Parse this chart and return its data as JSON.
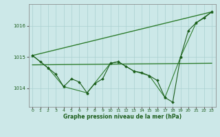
{
  "title": "Graphe pression niveau de la mer (hPa)",
  "background_color": "#cce8e8",
  "grid_color": "#aad0d0",
  "dark_green": "#1a5c1a",
  "mid_green": "#2e7d2e",
  "xlim": [
    -0.5,
    23.5
  ],
  "ylim": [
    1013.4,
    1016.7
  ],
  "yticks": [
    1014,
    1015,
    1016
  ],
  "xticks": [
    0,
    1,
    2,
    3,
    4,
    5,
    6,
    7,
    8,
    9,
    10,
    11,
    12,
    13,
    14,
    15,
    16,
    17,
    18,
    19,
    20,
    21,
    22,
    23
  ],
  "series_diagonal": {
    "x": [
      0,
      23
    ],
    "y": [
      1015.05,
      1016.45
    ],
    "color": "#2e7d2e",
    "linewidth": 1.0
  },
  "series_flat": {
    "x": [
      0,
      23
    ],
    "y": [
      1014.75,
      1014.8
    ],
    "color": "#2e7d2e",
    "linewidth": 1.0
  },
  "series_detailed": {
    "x": [
      0,
      1,
      2,
      3,
      4,
      5,
      6,
      7,
      8,
      9,
      10,
      11,
      12,
      13,
      14,
      15,
      16,
      17,
      18,
      19,
      20,
      21,
      22,
      23
    ],
    "y": [
      1015.05,
      1014.85,
      1014.65,
      1014.45,
      1014.05,
      1014.3,
      1014.2,
      1013.85,
      1014.15,
      1014.3,
      1014.8,
      1014.85,
      1014.7,
      1014.55,
      1014.5,
      1014.4,
      1014.25,
      1013.7,
      1013.55,
      1015.0,
      1015.85,
      1016.1,
      1016.25,
      1016.45
    ],
    "color": "#1a5c1a",
    "linewidth": 0.8,
    "marker": "D",
    "markersize": 2.0
  },
  "series_triangle": {
    "x": [
      0,
      2,
      4,
      7,
      10,
      11,
      13,
      15,
      17,
      19,
      21,
      23
    ],
    "y": [
      1015.05,
      1014.65,
      1014.05,
      1013.85,
      1014.8,
      1014.85,
      1014.55,
      1014.4,
      1013.7,
      1015.0,
      1016.1,
      1016.45
    ],
    "color": "#2e7d2e",
    "linewidth": 0.8,
    "marker": "^",
    "markersize": 2.5
  }
}
